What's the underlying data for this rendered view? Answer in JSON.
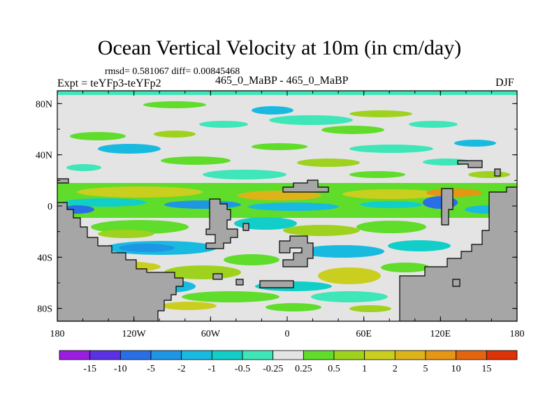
{
  "chart_data": {
    "type": "heatmap",
    "title": "Ocean Vertical Velocity at 10m (in cm/day)",
    "stats": "rmsd= 0.581067 diff= 0.00845468",
    "left_label": "Expt = teYFp3-teYFp2",
    "center_label": "465_0_MaBP - 465_0_MaBP",
    "right_label": "DJF",
    "x_axis": {
      "range": [
        -180,
        180
      ],
      "ticks": [
        -180,
        -120,
        -60,
        0,
        60,
        120,
        180
      ],
      "tick_labels": [
        "180",
        "120W",
        "60W",
        "0",
        "60E",
        "120E",
        "180"
      ]
    },
    "y_axis": {
      "range": [
        -90,
        90
      ],
      "ticks": [
        80,
        40,
        0,
        -40,
        -80
      ],
      "tick_labels": [
        "80N",
        "40N",
        "0",
        "40S",
        "80S"
      ]
    },
    "colorbar": {
      "labels": [
        "-15",
        "-10",
        "-5",
        "-2",
        "-1",
        "-0.5",
        "-0.25",
        "0.25",
        "0.5",
        "1",
        "2",
        "5",
        "10",
        "15"
      ],
      "colors": [
        "#9a1ee0",
        "#5a32e2",
        "#2a6ee6",
        "#1e96e4",
        "#18bae0",
        "#12cec8",
        "#3ee6b8",
        "#e4e4e4",
        "#60dc2a",
        "#9ed21e",
        "#cace1e",
        "#dcb41a",
        "#e49614",
        "#e46410",
        "#de3208"
      ]
    },
    "fill_color": "#e4e4e4",
    "land_color": "#a6a6a6"
  }
}
